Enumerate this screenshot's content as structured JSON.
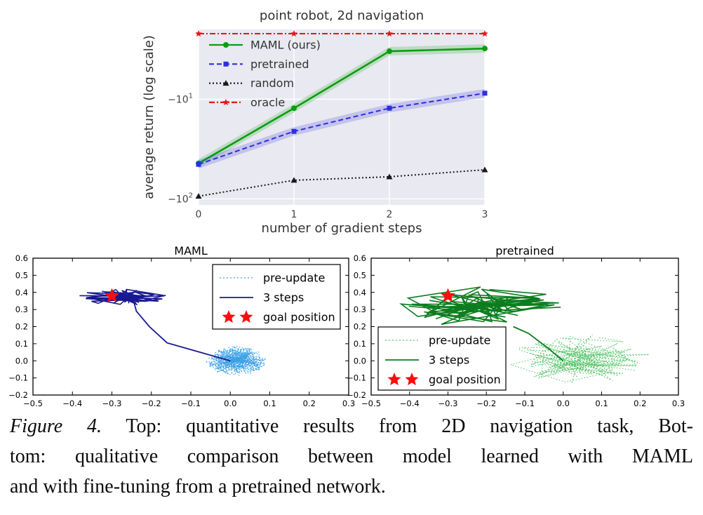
{
  "caption": {
    "label": "Figure 4.",
    "line1_rest": " Top: quantitative results from 2D navigation task, Bot-",
    "line2": "tom: qualitative comparison between model learned with MAML",
    "line3": "and with fine-tuning from a pretrained network."
  },
  "chart_data": [
    {
      "type": "line",
      "title": "point robot, 2d navigation",
      "xlabel": "number of gradient steps",
      "ylabel": "average return (log scale)",
      "x": [
        0,
        1,
        2,
        3
      ],
      "x_tick_labels": [
        "0",
        "1",
        "2",
        "3"
      ],
      "yscale": "negative-log",
      "ylim_log": [
        0.3,
        2.06
      ],
      "y_tick_values": [
        -10,
        -100
      ],
      "grid": true,
      "legend_position": "upper-left",
      "colors": {
        "plot_bg": "#e9e9f1",
        "grid": "#ffffff",
        "text": "#333333",
        "tick_text": "#444444"
      },
      "series": [
        {
          "name": "MAML (ours)",
          "values": [
            -44,
            -12.3,
            -3.3,
            -3.1
          ],
          "color": "#0a9e0f",
          "style": "solid",
          "marker": "circle",
          "band": true
        },
        {
          "name": "pretrained",
          "values": [
            -45,
            -21,
            -12.3,
            -8.7
          ],
          "color": "#2e2ee0",
          "style": "dashed",
          "marker": "square",
          "band": true
        },
        {
          "name": "random",
          "values": [
            -94,
            -65,
            -60,
            -51
          ],
          "color": "#1a1a1a",
          "style": "dotted",
          "marker": "triangle",
          "band": false
        },
        {
          "name": "oracle",
          "values": [
            -2.2,
            -2.2,
            -2.2,
            -2.2
          ],
          "color": "#e8131b",
          "style": "dashdot",
          "marker": "star",
          "band": false
        }
      ]
    },
    {
      "type": "trajectory",
      "title": "MAML",
      "xlim": [
        -0.5,
        0.3
      ],
      "ylim": [
        -0.2,
        0.6
      ],
      "x_ticks": [
        -0.5,
        -0.4,
        -0.3,
        -0.2,
        -0.1,
        0.0,
        0.1,
        0.2,
        0.3
      ],
      "y_ticks": [
        -0.2,
        -0.1,
        0.0,
        0.1,
        0.2,
        0.3,
        0.4,
        0.5,
        0.6
      ],
      "goal": [
        -0.3,
        0.38
      ],
      "goal_color": "#fb0d0e",
      "pre_update": {
        "color": "#3ba1e6",
        "center": [
          0.015,
          0.0
        ],
        "rx": 0.078,
        "ry": 0.088,
        "strands": 16,
        "points_per_strand": 16,
        "seed": 13
      },
      "post_update": {
        "color": "#191990",
        "center": [
          -0.26,
          0.372
        ],
        "rx": 0.125,
        "ry": 0.048,
        "strands": 9,
        "points_per_strand": 9,
        "seed": 5,
        "tail": [
          [
            0.0,
            0.0
          ],
          [
            -0.16,
            0.105
          ],
          [
            -0.205,
            0.2
          ],
          [
            -0.238,
            0.29
          ],
          [
            -0.245,
            0.35
          ]
        ]
      },
      "legend": {
        "position": "upper-right",
        "entries": [
          {
            "label": "pre-update",
            "style": "dotted",
            "color": "#3ba1e6"
          },
          {
            "label": "3 steps",
            "style": "solid",
            "color": "#191990"
          },
          {
            "label": "goal position",
            "style": "stars",
            "color": "#fb0d0e"
          }
        ]
      }
    },
    {
      "type": "trajectory",
      "title": "pretrained",
      "xlim": [
        -0.5,
        0.3
      ],
      "ylim": [
        -0.2,
        0.6
      ],
      "x_ticks": [
        -0.5,
        -0.4,
        -0.3,
        -0.2,
        -0.1,
        0.0,
        0.1,
        0.2,
        0.3
      ],
      "y_ticks": [
        -0.2,
        -0.1,
        0.0,
        0.1,
        0.2,
        0.3,
        0.4,
        0.5,
        0.6
      ],
      "goal": [
        -0.3,
        0.38
      ],
      "goal_color": "#fb0d0e",
      "pre_update": {
        "color": "#57c56b",
        "center": [
          0.045,
          0.005
        ],
        "rx": 0.185,
        "ry": 0.15,
        "strands": 13,
        "points_per_strand": 10,
        "seed": 29
      },
      "post_update": {
        "color": "#0c7d1e",
        "center": [
          -0.215,
          0.315
        ],
        "rx": 0.225,
        "ry": 0.125,
        "strands": 13,
        "points_per_strand": 8,
        "seed": 17,
        "tail": [
          [
            0.0,
            0.0
          ],
          [
            -0.04,
            0.075
          ],
          [
            -0.09,
            0.16
          ],
          [
            -0.13,
            0.2
          ]
        ]
      },
      "legend": {
        "position": "lower-left",
        "entries": [
          {
            "label": "pre-update",
            "style": "dotted",
            "color": "#57c56b"
          },
          {
            "label": "3 steps",
            "style": "solid",
            "color": "#0c7d1e"
          },
          {
            "label": "goal position",
            "style": "stars",
            "color": "#fb0d0e"
          }
        ]
      }
    }
  ]
}
